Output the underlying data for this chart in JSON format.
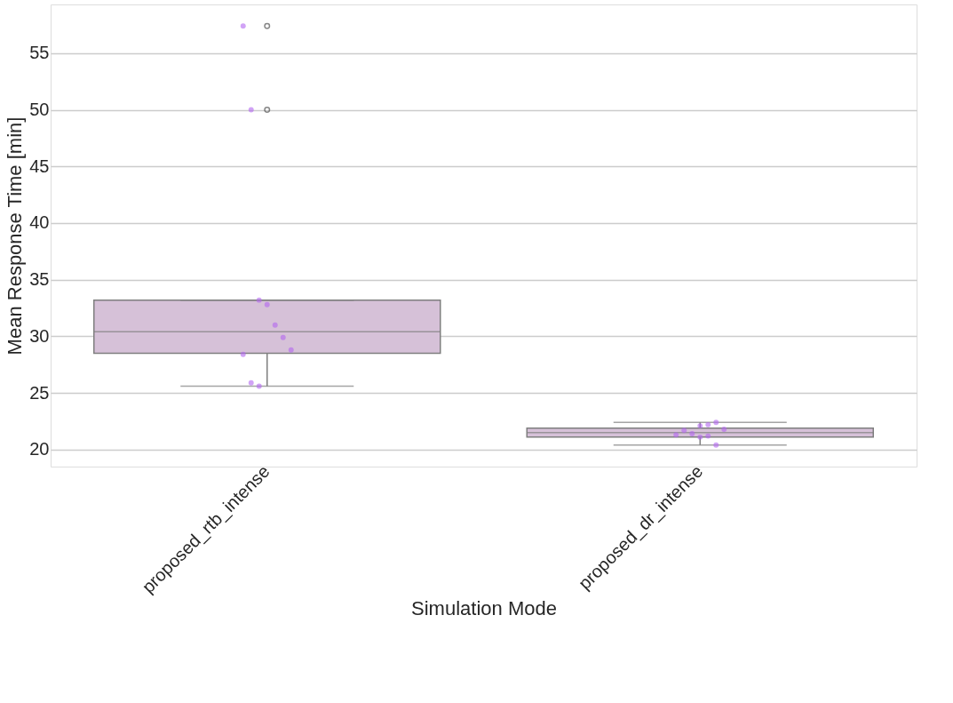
{
  "chart_data": {
    "type": "box",
    "xlabel": "Simulation Mode",
    "ylabel": "Mean Response Time [min]",
    "categories": [
      "proposed_rtb_intense",
      "proposed_dr_intense"
    ],
    "ylim": [
      18.5,
      59.3
    ],
    "yticks": [
      20,
      25,
      30,
      35,
      40,
      45,
      50,
      55
    ],
    "grid": "y",
    "series": [
      {
        "color": "#d6c1d8",
        "boxes": [
          {
            "low": 25.6,
            "q1": 28.5,
            "median": 30.4,
            "q3": 33.2,
            "high": 33.2,
            "outliers": [
              50.0,
              57.4
            ]
          },
          {
            "low": 20.4,
            "q1": 21.1,
            "median": 21.5,
            "q3": 21.9,
            "high": 22.4
          }
        ]
      },
      {
        "type": "scatter",
        "color": "#b366f0",
        "marker": "circle",
        "x": [
          "proposed_rtb_intense",
          "proposed_rtb_intense",
          "proposed_rtb_intense",
          "proposed_rtb_intense",
          "proposed_rtb_intense",
          "proposed_rtb_intense",
          "proposed_rtb_intense",
          "proposed_rtb_intense",
          "proposed_rtb_intense",
          "proposed_rtb_intense",
          "proposed_dr_intense",
          "proposed_dr_intense",
          "proposed_dr_intense",
          "proposed_dr_intense",
          "proposed_dr_intense",
          "proposed_dr_intense",
          "proposed_dr_intense",
          "proposed_dr_intense",
          "proposed_dr_intense",
          "proposed_dr_intense"
        ],
        "values": [
          57.4,
          50.0,
          33.2,
          32.8,
          31.0,
          29.9,
          28.8,
          28.4,
          25.9,
          25.6,
          22.1,
          22.2,
          22.4,
          21.8,
          21.3,
          21.7,
          21.4,
          21.1,
          21.2,
          20.4
        ]
      }
    ]
  }
}
